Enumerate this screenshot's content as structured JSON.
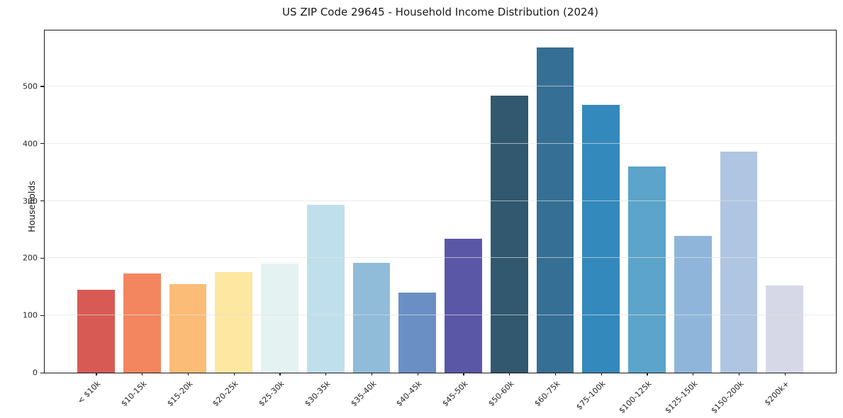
{
  "chart_data": {
    "type": "bar",
    "title": "US ZIP Code 29645 - Household Income Distribution (2024)",
    "xlabel": "",
    "ylabel": "Households",
    "categories": [
      "< $10k",
      "$10-15k",
      "$15-20k",
      "$20-25k",
      "$25-30k",
      "$30-35k",
      "$35-40k",
      "$40-45k",
      "$45-50k",
      "$50-60k",
      "$60-75k",
      "$75-100k",
      "$100-125k",
      "$125-150k",
      "$150-200k",
      "$200k+"
    ],
    "values": [
      145,
      174,
      155,
      177,
      191,
      294,
      192,
      140,
      235,
      486,
      570,
      469,
      361,
      240,
      388,
      153
    ],
    "bar_colors": [
      "#d85a54",
      "#f4865f",
      "#fabc76",
      "#fde8a1",
      "#e4f3f2",
      "#c0dfec",
      "#90bcda",
      "#6a8fc5",
      "#5b57a7",
      "#31586e",
      "#366f94",
      "#3389bc",
      "#5ca4ca",
      "#8fb6da",
      "#b0c5e1",
      "#d7d8e7"
    ],
    "yticks": [
      0,
      100,
      200,
      300,
      400,
      500
    ],
    "ylim": [
      0,
      600
    ],
    "grid": "horizontal",
    "legend_position": "none",
    "axis_color": "#1a1a1a",
    "grid_color": "#e1e1e1",
    "background_color": "#ffffff"
  }
}
